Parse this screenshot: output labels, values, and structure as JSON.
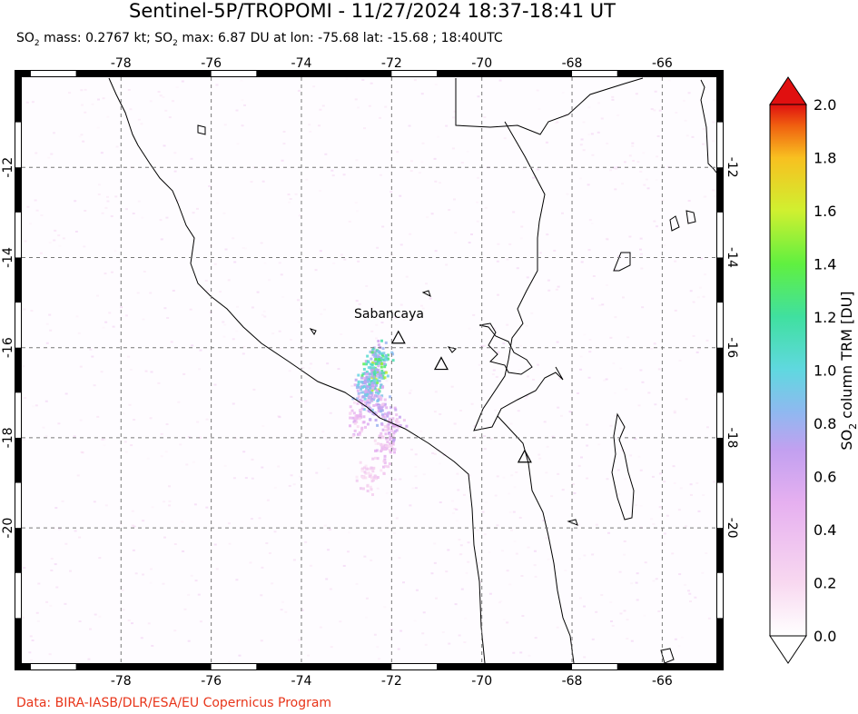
{
  "title": "Sentinel-5P/TROPOMI - 11/27/2024 18:37-18:41 UT",
  "subtitle": {
    "mass_prefix": "SO",
    "mass_sub": "2",
    "mass_text": " mass: 0.2767 kt; SO",
    "max_sub": "2",
    "max_text": " max: 6.87 DU at lon: -75.68 lat: -15.68 ; 18:40UTC"
  },
  "credit": "Data: BIRA-IASB/DLR/ESA/EU Copernicus Program",
  "colorbar": {
    "label_prefix": "SO",
    "label_sub": "2",
    "label_suffix": " column TRM [DU]",
    "ticks": [
      "0.0",
      "0.2",
      "0.4",
      "0.6",
      "0.8",
      "1.0",
      "1.2",
      "1.4",
      "1.6",
      "1.8",
      "2.0"
    ],
    "colors": [
      "#ffffff",
      "#f8d8f0",
      "#e6b0f0",
      "#c2a0f0",
      "#90b8f0",
      "#60d8e0",
      "#40e0a0",
      "#60f040",
      "#d0f030",
      "#f8c020",
      "#f06010",
      "#e01010"
    ]
  },
  "chart_data": {
    "type": "heatmap",
    "x_ticks": [
      -78,
      -76,
      -74,
      -72,
      -70,
      -68,
      -66
    ],
    "y_ticks": [
      -12,
      -14,
      -16,
      -18,
      -20
    ],
    "x_tick_labels": [
      "-78",
      "-76",
      "-74",
      "-72",
      "-70",
      "-68",
      "-66"
    ],
    "y_tick_labels": [
      "-12",
      "-14",
      "-16",
      "-18",
      "-20"
    ],
    "xlim": [
      -80.2,
      -64.8
    ],
    "ylim": [
      -23.0,
      -10.0
    ],
    "grid": true,
    "annotation": "Sabancaya",
    "volcanoes": [
      {
        "lon": -71.85,
        "lat": -15.78
      },
      {
        "lon": -70.9,
        "lat": -16.36
      },
      {
        "lon": -69.05,
        "lat": -18.42
      }
    ],
    "plume": [
      {
        "lon": -72.3,
        "lat": -16.2,
        "value": 1.2
      },
      {
        "lon": -72.4,
        "lat": -16.5,
        "value": 1.5
      },
      {
        "lon": -72.5,
        "lat": -16.8,
        "value": 1.1
      },
      {
        "lon": -72.6,
        "lat": -17.0,
        "value": 0.9
      },
      {
        "lon": -72.3,
        "lat": -17.3,
        "value": 0.7
      },
      {
        "lon": -72.0,
        "lat": -17.7,
        "value": 0.55
      },
      {
        "lon": -72.8,
        "lat": -17.5,
        "value": 0.45
      },
      {
        "lon": -72.2,
        "lat": -18.2,
        "value": 0.4
      },
      {
        "lon": -72.5,
        "lat": -18.8,
        "value": 0.3
      }
    ],
    "colorbar_range": [
      0.0,
      2.0
    ]
  }
}
